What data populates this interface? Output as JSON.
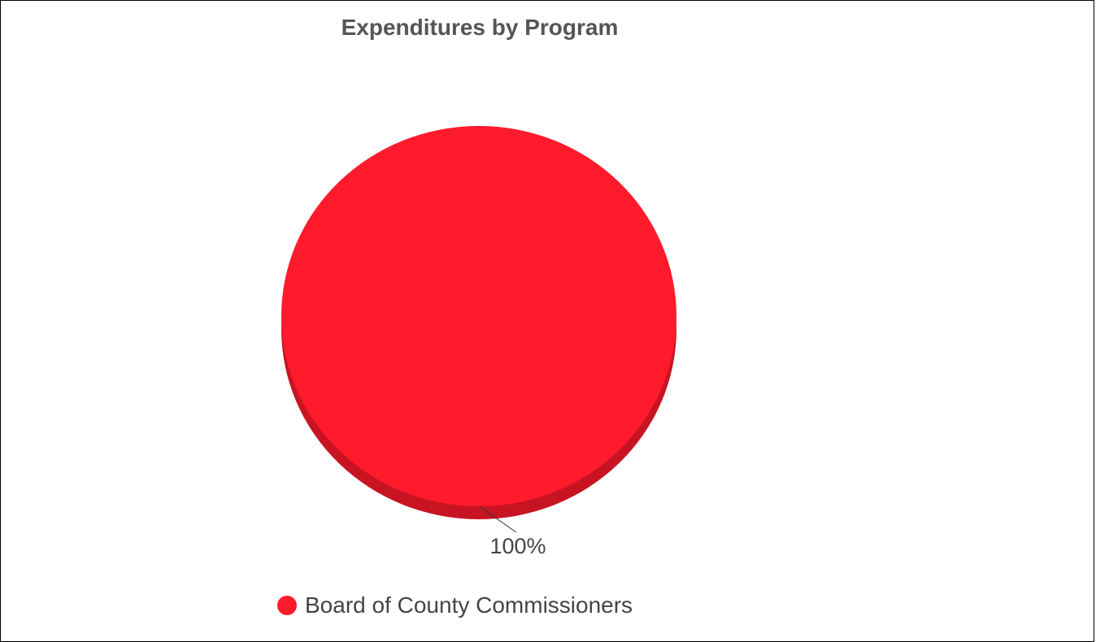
{
  "colors": {
    "slice_top": "#ff1a2c",
    "slice_side": "#c81422",
    "title_text": "#555555",
    "label_text": "#444444",
    "connector": "#333333"
  },
  "chart_data": {
    "type": "pie",
    "title": "Expenditures by Program",
    "slices": [
      {
        "label": "Board of County Commissioners",
        "value": 100,
        "display": "100%"
      }
    ],
    "legend_position": "bottom",
    "three_d": true
  }
}
